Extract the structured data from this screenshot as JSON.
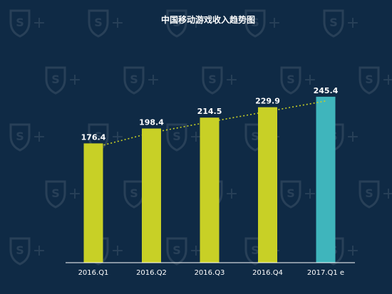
{
  "chart_data": {
    "type": "bar",
    "title": "中国移动游戏收入趋势图",
    "categories": [
      "2016.Q1",
      "2016.Q2",
      "2016.Q3",
      "2016.Q4",
      "2017.Q1 e"
    ],
    "values": [
      176.4,
      198.4,
      214.5,
      229.9,
      245.4
    ],
    "data_labels": [
      "176.4",
      "198.4",
      "214.5",
      "229.9",
      "245.4"
    ],
    "xlabel": "",
    "ylabel": "",
    "ylim": [
      0,
      280
    ],
    "grid": false,
    "legend": "none",
    "trendline": "dotted",
    "bar_colors": [
      "#c8d026",
      "#c8d026",
      "#c8d026",
      "#c8d026",
      "#3fb5bc"
    ],
    "trend_color": "#c8d026",
    "background": "#0f2a45"
  }
}
